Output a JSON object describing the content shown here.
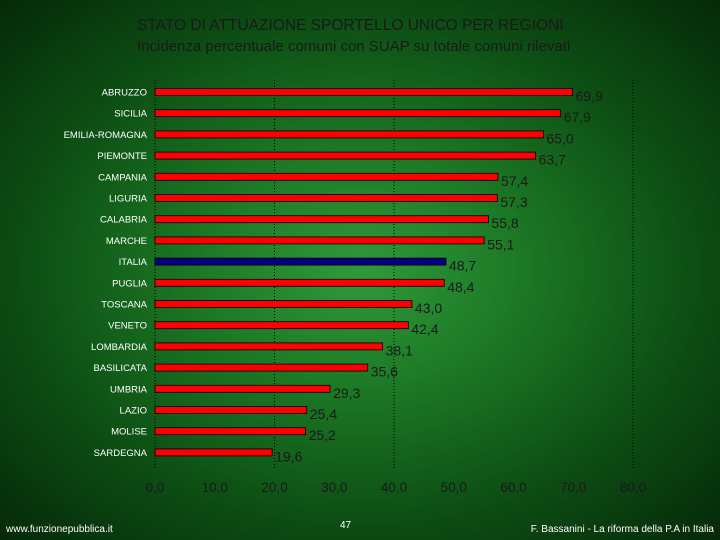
{
  "title": "STATO DI ATTUAZIONE SPORTELLO UNICO PER REGIONI",
  "subtitle": "Incidenza percentuale comuni con SUAP su totale comuni rilevati",
  "footer": {
    "left": "www.funzionepubblica.it",
    "page": "47",
    "right": "F. Bassanini - La riforma della P.A in Italia"
  },
  "colors": {
    "bar": "#ff0000",
    "highlight_bar": "#000080",
    "bar_outline": "#000000",
    "value_text": "#1a1a1a",
    "label_text": "#ffffff",
    "grid": "#000000"
  },
  "chart_data": {
    "type": "bar",
    "orientation": "horizontal",
    "categories": [
      "ABRUZZO",
      "SICILIA",
      "EMILIA-ROMAGNA",
      "PIEMONTE",
      "CAMPANIA",
      "LIGURIA",
      "CALABRIA",
      "MARCHE",
      "ITALIA",
      "PUGLIA",
      "TOSCANA",
      "VENETO",
      "LOMBARDIA",
      "BASILICATA",
      "UMBRIA",
      "LAZIO",
      "MOLISE",
      "SARDEGNA"
    ],
    "values": [
      69.9,
      67.9,
      65.0,
      63.7,
      57.4,
      57.3,
      55.8,
      55.1,
      48.7,
      48.4,
      43.0,
      42.4,
      38.1,
      35.6,
      29.3,
      25.4,
      25.2,
      19.6
    ],
    "value_labels": [
      "69,9",
      "67,9",
      "65,0",
      "63,7",
      "57,4",
      "57,3",
      "55,8",
      "55,1",
      "48,7",
      "48,4",
      "43,0",
      "42,4",
      "38,1",
      "35,6",
      "29,3",
      "25,4",
      "25,2",
      "19,6"
    ],
    "highlight": "ITALIA",
    "xlim": [
      0,
      80
    ],
    "ticks": [
      0,
      10,
      20,
      30,
      40,
      50,
      60,
      70,
      80
    ],
    "tick_labels": [
      "0,0",
      "10,0",
      "20,0",
      "30,0",
      "40,0",
      "50,0",
      "60,0",
      "70,0",
      "80,0"
    ],
    "grid": "vertical dotted at 20, 40, 80",
    "legend": "none"
  }
}
